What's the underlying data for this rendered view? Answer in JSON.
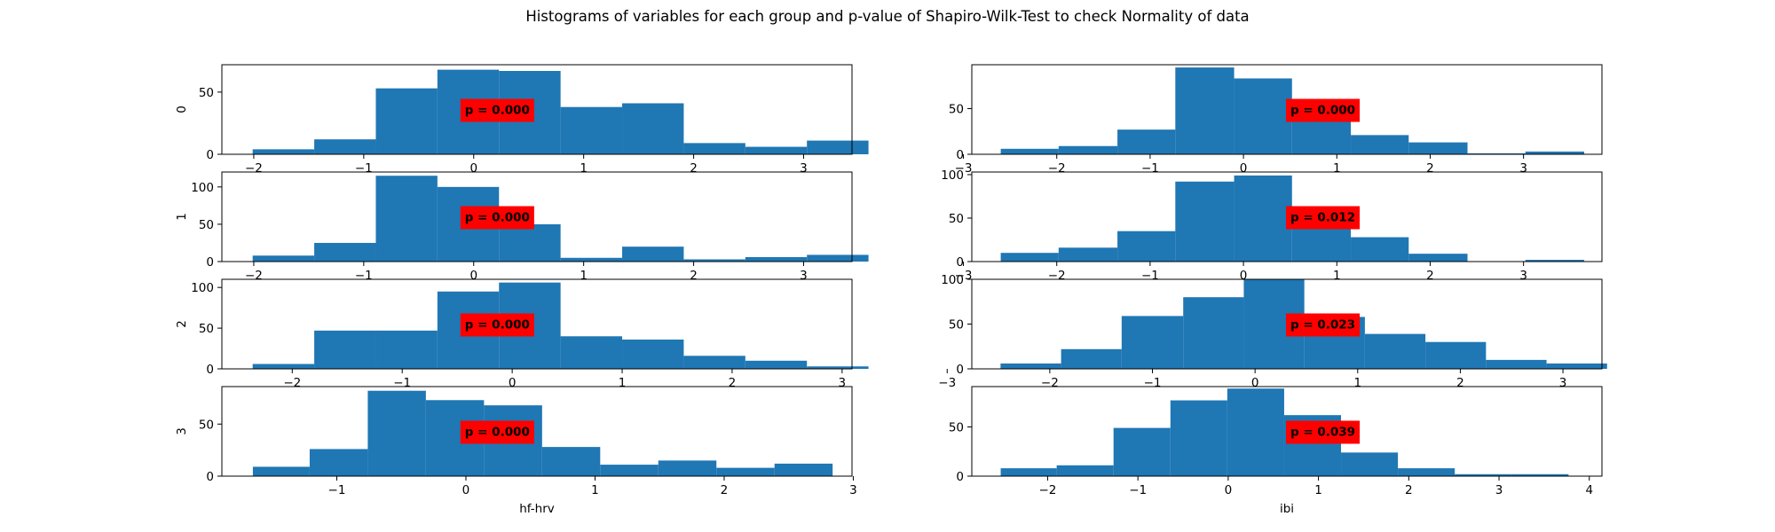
{
  "chart_data": {
    "title": "Histograms of variables for each group and p-value of Shapiro-Wilk-Test to check Normality of data",
    "panels": [
      {
        "type": "bar",
        "col": 0,
        "row": 0,
        "ylabel": "0",
        "xlabel": "",
        "xlim": [
          -2.29,
          3.44
        ],
        "ylim": [
          0,
          72
        ],
        "bins": [
          -2.01,
          -1.45,
          -0.89,
          -0.33,
          0.23,
          0.79,
          1.35,
          1.91,
          2.47,
          3.03,
          3.59
        ],
        "values": [
          4,
          12,
          53,
          68,
          67,
          38,
          41,
          9,
          6,
          11
        ],
        "xticks": [
          -2,
          -1,
          0,
          1,
          2,
          3
        ],
        "xtick_labels": [
          "−2",
          "−1",
          "0",
          "1",
          "2",
          "3"
        ],
        "yticks": [
          0,
          50
        ],
        "ytick_labels": [
          "0",
          "50"
        ],
        "pvalue": "p = 0.000",
        "ann_x": 0.38,
        "ann_y": 0.5
      },
      {
        "type": "bar",
        "col": 1,
        "row": 0,
        "ylabel": "",
        "xlabel": "",
        "xlim": [
          -2.91,
          3.84
        ],
        "ylim": [
          0,
          98
        ],
        "bins": [
          -2.6,
          -1.98,
          -1.35,
          -0.73,
          -0.1,
          0.52,
          1.15,
          1.77,
          2.4,
          3.02,
          3.65
        ],
        "values": [
          6,
          9,
          27,
          95,
          83,
          54,
          21,
          13,
          1,
          3
        ],
        "xticks": [
          -3,
          -2,
          -1,
          0,
          1,
          2,
          3
        ],
        "xtick_labels": [
          "−3",
          "−2",
          "−1",
          "0",
          "1",
          "2",
          "3"
        ],
        "yticks": [
          0,
          50
        ],
        "ytick_labels": [
          "0",
          "50"
        ],
        "pvalue": "p = 0.000",
        "ann_x": 0.5,
        "ann_y": 0.5
      },
      {
        "type": "bar",
        "col": 0,
        "row": 1,
        "ylabel": "1",
        "xlabel": "",
        "xlim": [
          -2.29,
          3.44
        ],
        "ylim": [
          0,
          120
        ],
        "bins": [
          -2.01,
          -1.45,
          -0.89,
          -0.33,
          0.23,
          0.79,
          1.35,
          1.91,
          2.47,
          3.03,
          3.59
        ],
        "values": [
          8,
          25,
          115,
          100,
          50,
          5,
          20,
          3,
          6,
          9
        ],
        "xticks": [
          -2,
          -1,
          0,
          1,
          2,
          3
        ],
        "xtick_labels": [
          "−2",
          "−1",
          "0",
          "1",
          "2",
          "3"
        ],
        "yticks": [
          0,
          50,
          100
        ],
        "ytick_labels": [
          "0",
          "50",
          "100"
        ],
        "pvalue": "p = 0.000",
        "ann_x": 0.38,
        "ann_y": 0.5
      },
      {
        "type": "bar",
        "col": 1,
        "row": 1,
        "ylabel": "",
        "xlabel": "",
        "xlim": [
          -2.91,
          3.84
        ],
        "ylim": [
          0,
          103
        ],
        "bins": [
          -2.6,
          -1.98,
          -1.35,
          -0.73,
          -0.1,
          0.52,
          1.15,
          1.77,
          2.4,
          3.02,
          3.65
        ],
        "values": [
          10,
          16,
          35,
          92,
          99,
          51,
          28,
          9,
          0,
          2
        ],
        "xticks": [
          -3,
          -2,
          -1,
          0,
          1,
          2,
          3
        ],
        "xtick_labels": [
          "−3",
          "−2",
          "−1",
          "0",
          "1",
          "2",
          "3"
        ],
        "yticks": [
          0,
          50,
          100
        ],
        "ytick_labels": [
          "0",
          "50",
          "100"
        ],
        "pvalue": "p = 0.012",
        "ann_x": 0.5,
        "ann_y": 0.5
      },
      {
        "type": "bar",
        "col": 0,
        "row": 2,
        "ylabel": "2",
        "xlabel": "",
        "xlim": [
          -2.64,
          3.09
        ],
        "ylim": [
          0,
          110
        ],
        "bins": [
          -2.36,
          -1.8,
          -1.24,
          -0.68,
          -0.12,
          0.44,
          1.0,
          1.56,
          2.12,
          2.68,
          3.24
        ],
        "values": [
          6,
          47,
          47,
          95,
          106,
          40,
          36,
          16,
          10,
          3
        ],
        "xticks": [
          -2,
          -1,
          0,
          1,
          2,
          3
        ],
        "xtick_labels": [
          "−2",
          "−1",
          "0",
          "1",
          "2",
          "3"
        ],
        "yticks": [
          0,
          50,
          100
        ],
        "ytick_labels": [
          "0",
          "50",
          "100"
        ],
        "pvalue": "p = 0.000",
        "ann_x": 0.38,
        "ann_y": 0.5
      },
      {
        "type": "bar",
        "col": 1,
        "row": 2,
        "ylabel": "",
        "xlabel": "",
        "xlim": [
          -2.76,
          3.38
        ],
        "ylim": [
          0,
          100
        ],
        "bins": [
          -2.48,
          -1.89,
          -1.3,
          -0.7,
          -0.11,
          0.48,
          1.07,
          1.66,
          2.25,
          2.84,
          3.43
        ],
        "values": [
          6,
          22,
          59,
          80,
          100,
          58,
          39,
          30,
          10,
          6
        ],
        "xticks": [
          -3,
          -2,
          -1,
          0,
          1,
          2,
          3
        ],
        "xtick_labels": [
          "−3",
          "−2",
          "−1",
          "0",
          "1",
          "2",
          "3"
        ],
        "yticks": [
          0,
          50,
          100
        ],
        "ytick_labels": [
          "0",
          "50",
          "100"
        ],
        "pvalue": "p = 0.023",
        "ann_x": 0.5,
        "ann_y": 0.5
      },
      {
        "type": "bar",
        "col": 0,
        "row": 3,
        "ylabel": "3",
        "xlabel": "hf-hrv",
        "xlim": [
          -1.89,
          2.99
        ],
        "ylim": [
          0,
          86
        ],
        "bins": [
          -1.65,
          -1.21,
          -0.76,
          -0.31,
          0.14,
          0.59,
          1.04,
          1.49,
          1.94,
          2.39,
          2.84
        ],
        "values": [
          9,
          26,
          82,
          73,
          68,
          28,
          11,
          15,
          8,
          12
        ],
        "xticks": [
          -1,
          0,
          1,
          2,
          3
        ],
        "xtick_labels": [
          "−1",
          "0",
          "1",
          "2",
          "3"
        ],
        "yticks": [
          0,
          50
        ],
        "ytick_labels": [
          "0",
          "50"
        ],
        "pvalue": "p = 0.000",
        "ann_x": 0.38,
        "ann_y": 0.5
      },
      {
        "type": "bar",
        "col": 1,
        "row": 3,
        "ylabel": "",
        "xlabel": "ibi",
        "xlim": [
          -2.84,
          4.14
        ],
        "ylim": [
          0,
          91
        ],
        "bins": [
          -2.52,
          -1.9,
          -1.27,
          -0.64,
          -0.01,
          0.62,
          1.25,
          1.88,
          2.51,
          3.14,
          3.77
        ],
        "values": [
          8,
          11,
          49,
          77,
          89,
          62,
          24,
          8,
          2,
          2
        ],
        "xticks": [
          -2,
          -1,
          0,
          1,
          2,
          3,
          4
        ],
        "xtick_labels": [
          "−2",
          "−1",
          "0",
          "1",
          "2",
          "3",
          "4"
        ],
        "yticks": [
          0,
          50
        ],
        "ytick_labels": [
          "0",
          "50"
        ],
        "pvalue": "p = 0.039",
        "ann_x": 0.5,
        "ann_y": 0.5
      }
    ]
  },
  "colors": {
    "bar": "#1f77b4",
    "annotation_bg": "#ff0000"
  }
}
